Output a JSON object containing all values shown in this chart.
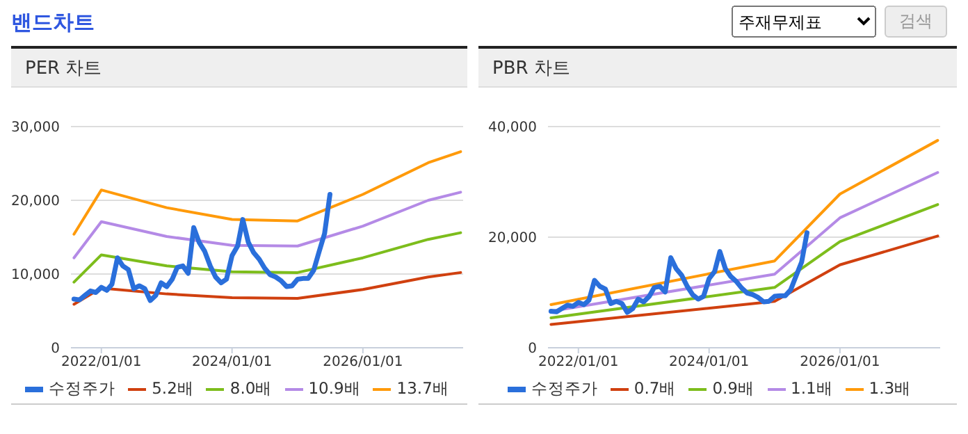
{
  "chart_data": [
    {
      "type": "line",
      "title": "PER 차트",
      "annotations": [
        "밴드차트",
        "주재무제표",
        "검색"
      ],
      "xlim": [
        "2021-07-15",
        "2027-07-15"
      ],
      "xticks": [
        {
          "value": "2022-01-01",
          "label": "2022/01/01"
        },
        {
          "value": "2024-01-01",
          "label": "2024/01/01"
        },
        {
          "value": "2026-01-01",
          "label": "2026/01/01"
        }
      ],
      "ylim": [
        0,
        30000
      ],
      "yticks": [
        0,
        {
          "value": 10000,
          "label": "10,000"
        },
        {
          "value": 20000,
          "label": "20,000"
        },
        {
          "value": 30000,
          "label": "30,000"
        }
      ],
      "grid": "y",
      "legend": "bottom",
      "marker": "none",
      "line_style": "solid",
      "series": [
        {
          "name": "수정주가",
          "color": "#2a6fdb",
          "x": [
            "2021-08",
            "2021-09",
            "2021-10",
            "2021-11",
            "2021-12",
            "2022-01",
            "2022-02",
            "2022-03",
            "2022-04",
            "2022-05",
            "2022-06",
            "2022-07",
            "2022-08",
            "2022-09",
            "2022-10",
            "2022-11",
            "2022-12",
            "2023-01",
            "2023-02",
            "2023-03",
            "2023-04",
            "2023-05",
            "2023-06",
            "2023-07",
            "2023-08",
            "2023-09",
            "2023-10",
            "2023-11",
            "2023-12",
            "2024-01",
            "2024-02",
            "2024-03",
            "2024-04",
            "2024-05",
            "2024-06",
            "2024-07",
            "2024-08",
            "2024-09",
            "2024-10",
            "2024-11",
            "2024-12",
            "2025-01",
            "2025-02",
            "2025-03",
            "2025-04",
            "2025-05",
            "2025-06",
            "2025-07"
          ],
          "values": [
            6600,
            6500,
            7100,
            7700,
            7500,
            8200,
            7800,
            8600,
            12200,
            11100,
            10600,
            8000,
            8400,
            8000,
            6400,
            7100,
            8800,
            8300,
            9300,
            10900,
            11100,
            10100,
            16300,
            14300,
            13100,
            11100,
            9600,
            8800,
            9300,
            12500,
            13800,
            17400,
            14300,
            12900,
            12000,
            10800,
            9900,
            9600,
            9100,
            8300,
            8400,
            9300,
            9400,
            9400,
            10500,
            13000,
            15500,
            20800
          ]
        },
        {
          "name": "5.2배",
          "color": "#d0400f",
          "x": [
            "2021-08",
            "2022-01",
            "2023-01",
            "2024-01",
            "2025-01",
            "2026-01",
            "2027-01",
            "2027-07"
          ],
          "values": [
            5900,
            8100,
            7300,
            6800,
            6700,
            7900,
            9600,
            10200
          ]
        },
        {
          "name": "8.0배",
          "color": "#7dbd1c",
          "x": [
            "2021-08",
            "2022-01",
            "2023-01",
            "2024-01",
            "2025-01",
            "2026-01",
            "2027-01",
            "2027-07"
          ],
          "values": [
            8900,
            12600,
            11100,
            10300,
            10200,
            12200,
            14700,
            15600
          ]
        },
        {
          "name": "10.9배",
          "color": "#b48ae6",
          "x": [
            "2021-08",
            "2022-01",
            "2023-01",
            "2024-01",
            "2025-01",
            "2026-01",
            "2027-01",
            "2027-07"
          ],
          "values": [
            12200,
            17100,
            15100,
            13900,
            13800,
            16500,
            20000,
            21100
          ]
        },
        {
          "name": "13.7배",
          "color": "#ff9a0a",
          "x": [
            "2021-08",
            "2022-01",
            "2023-01",
            "2024-01",
            "2025-01",
            "2026-01",
            "2027-01",
            "2027-07"
          ],
          "values": [
            15400,
            21400,
            19000,
            17400,
            17200,
            20800,
            25100,
            26600
          ]
        }
      ]
    },
    {
      "type": "line",
      "title": "PBR 차트",
      "xlim": [
        "2021-07-15",
        "2027-07-15"
      ],
      "xticks": [
        {
          "value": "2022-01-01",
          "label": "2022/01/01"
        },
        {
          "value": "2024-01-01",
          "label": "2024/01/01"
        },
        {
          "value": "2026-01-01",
          "label": "2026/01/01"
        }
      ],
      "ylim": [
        0,
        40000
      ],
      "yticks": [
        0,
        {
          "value": 20000,
          "label": "20,000"
        },
        {
          "value": 40000,
          "label": "40,000"
        }
      ],
      "grid": "y",
      "legend": "bottom",
      "marker": "none",
      "line_style": "solid",
      "series": [
        {
          "name": "수정주가",
          "color": "#2a6fdb",
          "x": [
            "2021-08",
            "2021-09",
            "2021-10",
            "2021-11",
            "2021-12",
            "2022-01",
            "2022-02",
            "2022-03",
            "2022-04",
            "2022-05",
            "2022-06",
            "2022-07",
            "2022-08",
            "2022-09",
            "2022-10",
            "2022-11",
            "2022-12",
            "2023-01",
            "2023-02",
            "2023-03",
            "2023-04",
            "2023-05",
            "2023-06",
            "2023-07",
            "2023-08",
            "2023-09",
            "2023-10",
            "2023-11",
            "2023-12",
            "2024-01",
            "2024-02",
            "2024-03",
            "2024-04",
            "2024-05",
            "2024-06",
            "2024-07",
            "2024-08",
            "2024-09",
            "2024-10",
            "2024-11",
            "2024-12",
            "2025-01",
            "2025-02",
            "2025-03",
            "2025-04",
            "2025-05",
            "2025-06",
            "2025-07"
          ],
          "values": [
            6600,
            6500,
            7100,
            7700,
            7500,
            8200,
            7800,
            8600,
            12200,
            11100,
            10600,
            8000,
            8400,
            8000,
            6400,
            7100,
            8800,
            8300,
            9300,
            10900,
            11100,
            10100,
            16300,
            14300,
            13100,
            11100,
            9600,
            8800,
            9300,
            12500,
            13800,
            17400,
            14300,
            12900,
            12000,
            10800,
            9900,
            9600,
            9100,
            8300,
            8400,
            9300,
            9400,
            9400,
            10500,
            13000,
            15500,
            20800
          ]
        },
        {
          "name": "0.7배",
          "color": "#d0400f",
          "x": [
            "2021-08",
            "2025-01",
            "2026-01",
            "2027-07"
          ],
          "values": [
            4200,
            8400,
            15000,
            20200
          ]
        },
        {
          "name": "0.9배",
          "color": "#7dbd1c",
          "x": [
            "2021-08",
            "2025-01",
            "2026-01",
            "2027-07"
          ],
          "values": [
            5400,
            10900,
            19200,
            25900
          ]
        },
        {
          "name": "1.1배",
          "color": "#b48ae6",
          "x": [
            "2021-08",
            "2025-01",
            "2026-01",
            "2027-07"
          ],
          "values": [
            6600,
            13300,
            23500,
            31700
          ]
        },
        {
          "name": "1.3배",
          "color": "#ff9a0a",
          "x": [
            "2021-08",
            "2025-01",
            "2026-01",
            "2027-07"
          ],
          "values": [
            7800,
            15700,
            27800,
            37500
          ]
        }
      ]
    }
  ]
}
